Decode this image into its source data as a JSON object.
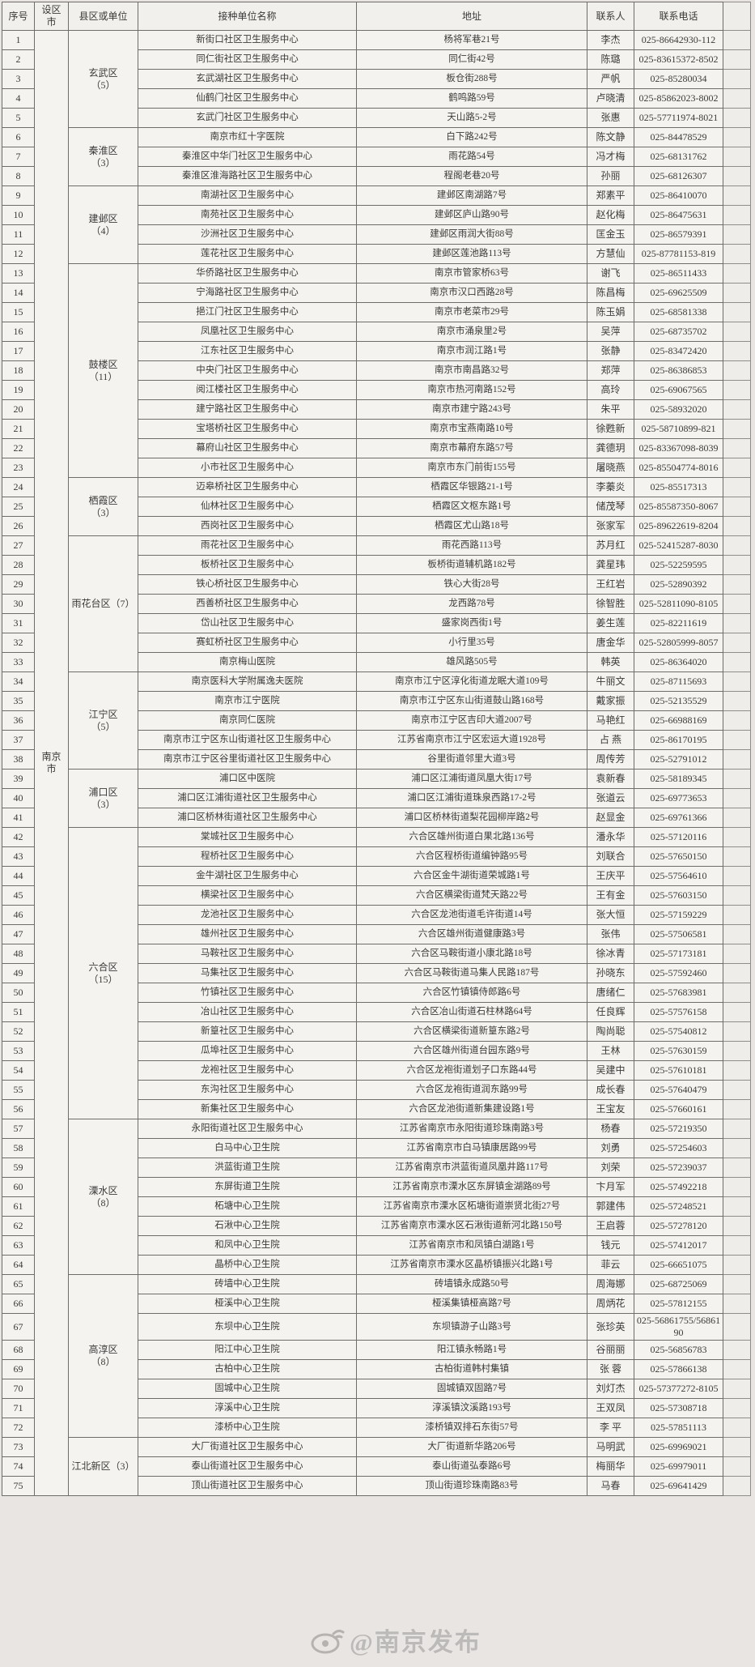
{
  "page": {
    "background": "#e8e5e2"
  },
  "watermark": {
    "text": "@南京发布",
    "icon": "weibo-eye-logo"
  },
  "table": {
    "headers": [
      "序号",
      "设区市",
      "县区或单位",
      "接种单位名称",
      "地址",
      "联系人",
      "联系电话"
    ],
    "city": "南京市",
    "districts": [
      {
        "label": "玄武区\n（5）",
        "from": 1,
        "to": 5
      },
      {
        "label": "秦淮区\n（3）",
        "from": 6,
        "to": 8
      },
      {
        "label": "建邺区\n（4）",
        "from": 9,
        "to": 12
      },
      {
        "label": "鼓楼区\n（11）",
        "from": 13,
        "to": 23
      },
      {
        "label": "栖霞区\n（3）",
        "from": 24,
        "to": 26
      },
      {
        "label": "雨花台区（7）",
        "from": 27,
        "to": 33
      },
      {
        "label": "江宁区\n（5）",
        "from": 34,
        "to": 38
      },
      {
        "label": "浦口区\n（3）",
        "from": 39,
        "to": 41
      },
      {
        "label": "六合区\n（15）",
        "from": 42,
        "to": 56
      },
      {
        "label": "溧水区\n（8）",
        "from": 57,
        "to": 64
      },
      {
        "label": "高淳区\n（8）",
        "from": 65,
        "to": 72
      },
      {
        "label": "江北新区（3）",
        "from": 73,
        "to": 75
      }
    ],
    "rows": [
      {
        "no": 1,
        "name": "新街口社区卫生服务中心",
        "addr": "杨将军巷21号",
        "contact": "李杰",
        "phone": "025-86642930-112"
      },
      {
        "no": 2,
        "name": "同仁街社区卫生服务中心",
        "addr": "同仁街42号",
        "contact": "陈璐",
        "phone": "025-83615372-8502"
      },
      {
        "no": 3,
        "name": "玄武湖社区卫生服务中心",
        "addr": "板仓街288号",
        "contact": "严帆",
        "phone": "025-85280034"
      },
      {
        "no": 4,
        "name": "仙鹤门社区卫生服务中心",
        "addr": "鹤鸣路59号",
        "contact": "卢晓清",
        "phone": "025-85862023-8002"
      },
      {
        "no": 5,
        "name": "玄武门社区卫生服务中心",
        "addr": "天山路5-2号",
        "contact": "张惠",
        "phone": "025-57711974-8021"
      },
      {
        "no": 6,
        "name": "南京市红十字医院",
        "addr": "白下路242号",
        "contact": "陈文静",
        "phone": "025-84478529"
      },
      {
        "no": 7,
        "name": "秦淮区中华门社区卫生服务中心",
        "addr": "雨花路54号",
        "contact": "冯才梅",
        "phone": "025-68131762"
      },
      {
        "no": 8,
        "name": "秦淮区淮海路社区卫生服务中心",
        "addr": "程阁老巷20号",
        "contact": "孙丽",
        "phone": "025-68126307"
      },
      {
        "no": 9,
        "name": "南湖社区卫生服务中心",
        "addr": "建邺区南湖路7号",
        "contact": "郑素平",
        "phone": "025-86410070"
      },
      {
        "no": 10,
        "name": "南苑社区卫生服务中心",
        "addr": "建邺区庐山路90号",
        "contact": "赵化梅",
        "phone": "025-86475631"
      },
      {
        "no": 11,
        "name": "沙洲社区卫生服务中心",
        "addr": "建邺区雨润大街88号",
        "contact": "匡金玉",
        "phone": "025-86579391"
      },
      {
        "no": 12,
        "name": "莲花社区卫生服务中心",
        "addr": "建邺区莲池路113号",
        "contact": "方慧仙",
        "phone": "025-87781153-819"
      },
      {
        "no": 13,
        "name": "华侨路社区卫生服务中心",
        "addr": "南京市管家桥63号",
        "contact": "谢飞",
        "phone": "025-86511433"
      },
      {
        "no": 14,
        "name": "宁海路社区卫生服务中心",
        "addr": "南京市汉口西路28号",
        "contact": "陈昌梅",
        "phone": "025-69625509"
      },
      {
        "no": 15,
        "name": "挹江门社区卫生服务中心",
        "addr": "南京市老菜市29号",
        "contact": "陈玉娟",
        "phone": "025-68581338"
      },
      {
        "no": 16,
        "name": "凤凰社区卫生服务中心",
        "addr": "南京市涌泉里2号",
        "contact": "吴萍",
        "phone": "025-68735702"
      },
      {
        "no": 17,
        "name": "江东社区卫生服务中心",
        "addr": "南京市润江路1号",
        "contact": "张静",
        "phone": "025-83472420"
      },
      {
        "no": 18,
        "name": "中央门社区卫生服务中心",
        "addr": "南京市南昌路32号",
        "contact": "郑萍",
        "phone": "025-86386853"
      },
      {
        "no": 19,
        "name": "阅江楼社区卫生服务中心",
        "addr": "南京市热河南路152号",
        "contact": "高玲",
        "phone": "025-69067565"
      },
      {
        "no": 20,
        "name": "建宁路社区卫生服务中心",
        "addr": "南京市建宁路243号",
        "contact": "朱平",
        "phone": "025-58932020"
      },
      {
        "no": 21,
        "name": "宝塔桥社区卫生服务中心",
        "addr": "南京市宝燕南路10号",
        "contact": "徐甦新",
        "phone": "025-58710899-821"
      },
      {
        "no": 22,
        "name": "幕府山社区卫生服务中心",
        "addr": "南京市幕府东路57号",
        "contact": "龚德玥",
        "phone": "025-83367098-8039"
      },
      {
        "no": 23,
        "name": "小市社区卫生服务中心",
        "addr": "南京市东门前街155号",
        "contact": "屠晓燕",
        "phone": "025-85504774-8016"
      },
      {
        "no": 24,
        "name": "迈皋桥社区卫生服务中心",
        "addr": "栖霞区华银路21-1号",
        "contact": "李蓁炎",
        "phone": "025-85517313"
      },
      {
        "no": 25,
        "name": "仙林社区卫生服务中心",
        "addr": "栖霞区文枢东路1号",
        "contact": "储茂琴",
        "phone": "025-85587350-8067"
      },
      {
        "no": 26,
        "name": "西岗社区卫生服务中心",
        "addr": "栖霞区尤山路18号",
        "contact": "张家军",
        "phone": "025-89622619-8204"
      },
      {
        "no": 27,
        "name": "雨花社区卫生服务中心",
        "addr": "雨花西路113号",
        "contact": "苏月红",
        "phone": "025-52415287-8030"
      },
      {
        "no": 28,
        "name": "板桥社区卫生服务中心",
        "addr": "板桥街道辅机路182号",
        "contact": "龚星玮",
        "phone": "025-52259595"
      },
      {
        "no": 29,
        "name": "铁心桥社区卫生服务中心",
        "addr": "铁心大街28号",
        "contact": "王红岩",
        "phone": "025-52890392"
      },
      {
        "no": 30,
        "name": "西善桥社区卫生服务中心",
        "addr": "龙西路78号",
        "contact": "徐智胜",
        "phone": "025-52811090-8105"
      },
      {
        "no": 31,
        "name": "岱山社区卫生服务中心",
        "addr": "盛家岗西街1号",
        "contact": "姜生莲",
        "phone": "025-82211619"
      },
      {
        "no": 32,
        "name": "赛虹桥社区卫生服务中心",
        "addr": "小行里35号",
        "contact": "唐金华",
        "phone": "025-52805999-8057"
      },
      {
        "no": 33,
        "name": "南京梅山医院",
        "addr": "雄风路505号",
        "contact": "韩英",
        "phone": "025-86364020"
      },
      {
        "no": 34,
        "name": "南京医科大学附属逸夫医院",
        "addr": "南京市江宁区淳化街道龙眠大道109号",
        "contact": "牛丽文",
        "phone": "025-87115693"
      },
      {
        "no": 35,
        "name": "南京市江宁医院",
        "addr": "南京市江宁区东山街道鼓山路168号",
        "contact": "戴家振",
        "phone": "025-52135529"
      },
      {
        "no": 36,
        "name": "南京同仁医院",
        "addr": "南京市江宁区吉印大道2007号",
        "contact": "马艳红",
        "phone": "025-66988169"
      },
      {
        "no": 37,
        "name": "南京市江宁区东山街道社区卫生服务中心",
        "addr": "江苏省南京市江宁区宏运大道1928号",
        "contact": "占  燕",
        "phone": "025-86170195"
      },
      {
        "no": 38,
        "name": "南京市江宁区谷里街道社区卫生服务中心",
        "addr": "谷里街道邻里大道3号",
        "contact": "周传芳",
        "phone": "025-52791012"
      },
      {
        "no": 39,
        "name": "浦口区中医院",
        "addr": "浦口区江浦街道凤凰大街17号",
        "contact": "袁新春",
        "phone": "025-58189345"
      },
      {
        "no": 40,
        "name": "浦口区江浦街道社区卫生服务中心",
        "addr": "浦口区江浦街道珠泉西路17-2号",
        "contact": "张道云",
        "phone": "025-69773653"
      },
      {
        "no": 41,
        "name": "浦口区桥林街道社区卫生服务中心",
        "addr": "浦口区桥林街道梨花园柳岸路2号",
        "contact": "赵显金",
        "phone": "025-69761366"
      },
      {
        "no": 42,
        "name": "棠城社区卫生服务中心",
        "addr": "六合区雄州街道白果北路136号",
        "contact": "潘永华",
        "phone": "025-57120116"
      },
      {
        "no": 43,
        "name": "程桥社区卫生服务中心",
        "addr": "六合区程桥街道编钟路95号",
        "contact": "刘联合",
        "phone": "025-57650150"
      },
      {
        "no": 44,
        "name": "金牛湖社区卫生服务中心",
        "addr": "六合区金牛湖街道荣城路1号",
        "contact": "王庆平",
        "phone": "025-57564610"
      },
      {
        "no": 45,
        "name": "横梁社区卫生服务中心",
        "addr": "六合区横梁街道梵天路22号",
        "contact": "王有金",
        "phone": "025-57603150"
      },
      {
        "no": 46,
        "name": "龙池社区卫生服务中心",
        "addr": "六合区龙池街道毛许街道14号",
        "contact": "张大恒",
        "phone": "025-57159229"
      },
      {
        "no": 47,
        "name": "雄州社区卫生服务中心",
        "addr": "六合区雄州街道健康路3号",
        "contact": "张伟",
        "phone": "025-57506581"
      },
      {
        "no": 48,
        "name": "马鞍社区卫生服务中心",
        "addr": "六合区马鞍街道小康北路18号",
        "contact": "徐冰青",
        "phone": "025-57173181"
      },
      {
        "no": 49,
        "name": "马集社区卫生服务中心",
        "addr": "六合区马鞍街道马集人民路187号",
        "contact": "孙晓东",
        "phone": "025-57592460"
      },
      {
        "no": 50,
        "name": "竹镇社区卫生服务中心",
        "addr": "六合区竹镇镇侍郎路6号",
        "contact": "唐绪仁",
        "phone": "025-57683981"
      },
      {
        "no": 51,
        "name": "冶山社区卫生服务中心",
        "addr": "六合区冶山街道石柱林路64号",
        "contact": "任良辉",
        "phone": "025-57576158"
      },
      {
        "no": 52,
        "name": "新篁社区卫生服务中心",
        "addr": "六合区横梁街道新篁东路2号",
        "contact": "陶尚聪",
        "phone": "025-57540812"
      },
      {
        "no": 53,
        "name": "瓜埠社区卫生服务中心",
        "addr": "六合区雄州街道台园东路9号",
        "contact": "王林",
        "phone": "025-57630159"
      },
      {
        "no": 54,
        "name": "龙袍社区卫生服务中心",
        "addr": "六合区龙袍街道划子口东路44号",
        "contact": "吴建中",
        "phone": "025-57610181"
      },
      {
        "no": 55,
        "name": "东沟社区卫生服务中心",
        "addr": "六合区龙袍街道润东路99号",
        "contact": "成长春",
        "phone": "025-57640479"
      },
      {
        "no": 56,
        "name": "新集社区卫生服务中心",
        "addr": "六合区龙池街道新集建设路1号",
        "contact": "王宝友",
        "phone": "025-57660161"
      },
      {
        "no": 57,
        "name": "永阳街道社区卫生服务中心",
        "addr": "江苏省南京市永阳街道珍珠南路3号",
        "contact": "杨春",
        "phone": "025-57219350"
      },
      {
        "no": 58,
        "name": "白马中心卫生院",
        "addr": "江苏省南京市白马镇康居路99号",
        "contact": "刘勇",
        "phone": "025-57254603"
      },
      {
        "no": 59,
        "name": "洪蓝街道卫生院",
        "addr": "江苏省南京市洪蓝街道凤凰井路117号",
        "contact": "刘荣",
        "phone": "025-57239037"
      },
      {
        "no": 60,
        "name": "东屏街道卫生院",
        "addr": "江苏省南京市溧水区东屏镇金湖路89号",
        "contact": "卞月军",
        "phone": "025-57492218"
      },
      {
        "no": 61,
        "name": "柘塘中心卫生院",
        "addr": "江苏省南京市溧水区柘塘街道崇贤北街27号",
        "contact": "郭建伟",
        "phone": "025-57248521"
      },
      {
        "no": 62,
        "name": "石湫中心卫生院",
        "addr": "江苏省南京市溧水区石湫街道新河北路150号",
        "contact": "王启蓉",
        "phone": "025-57278120"
      },
      {
        "no": 63,
        "name": "和凤中心卫生院",
        "addr": "江苏省南京市和凤镇白湖路1号",
        "contact": "钱元",
        "phone": "025-57412017"
      },
      {
        "no": 64,
        "name": "晶桥中心卫生院",
        "addr": "江苏省南京市溧水区晶桥镇振兴北路1号",
        "contact": "菲云",
        "phone": "025-66651075"
      },
      {
        "no": 65,
        "name": "砖墙中心卫生院",
        "addr": "砖墙镇永成路50号",
        "contact": "周海娜",
        "phone": "025-68725069"
      },
      {
        "no": 66,
        "name": "桠溪中心卫生院",
        "addr": "桠溪集镇桠高路7号",
        "contact": "周炳花",
        "phone": "025-57812155"
      },
      {
        "no": 67,
        "name": "东坝中心卫生院",
        "addr": "东坝镇游子山路3号",
        "contact": "张珍英",
        "phone": "025-56861755/5686190"
      },
      {
        "no": 68,
        "name": "阳江中心卫生院",
        "addr": "阳江镇永畅路1号",
        "contact": "谷丽丽",
        "phone": "025-56856783"
      },
      {
        "no": 69,
        "name": "古柏中心卫生院",
        "addr": "古柏街道韩村集镇",
        "contact": "张  蓉",
        "phone": "025-57866138"
      },
      {
        "no": 70,
        "name": "固城中心卫生院",
        "addr": "固城镇双固路7号",
        "contact": "刘灯杰",
        "phone": "025-57377272-8105"
      },
      {
        "no": 71,
        "name": "淳溪中心卫生院",
        "addr": "淳溪镇汶溪路193号",
        "contact": "王双凤",
        "phone": "025-57308718"
      },
      {
        "no": 72,
        "name": "漆桥中心卫生院",
        "addr": "漆桥镇双排石东街57号",
        "contact": "李  平",
        "phone": "025-57851113"
      },
      {
        "no": 73,
        "name": "大厂街道社区卫生服务中心",
        "addr": "大厂街道新华路206号",
        "contact": "马明武",
        "phone": "025-69969021"
      },
      {
        "no": 74,
        "name": "泰山街道社区卫生服务中心",
        "addr": "泰山街道弘泰路6号",
        "contact": "梅丽华",
        "phone": "025-69979011"
      },
      {
        "no": 75,
        "name": "顶山街道社区卫生服务中心",
        "addr": "顶山街道珍珠南路83号",
        "contact": "马春",
        "phone": "025-69641429"
      }
    ]
  }
}
